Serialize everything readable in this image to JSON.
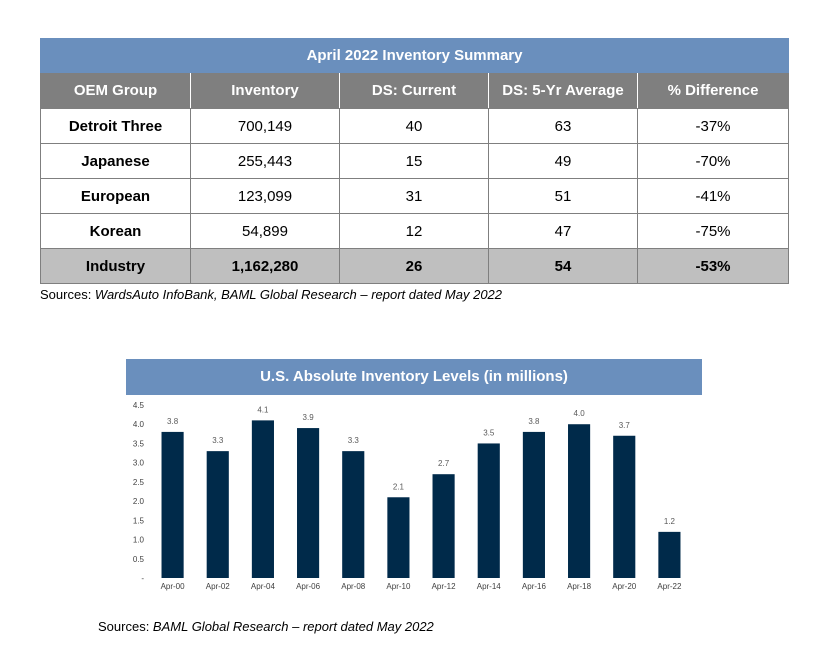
{
  "table": {
    "title": "April 2022 Inventory Summary",
    "headers": [
      "OEM Group",
      "Inventory",
      "DS: Current",
      "DS: 5-Yr Average",
      "% Difference"
    ],
    "rows": [
      [
        "Detroit Three",
        "700,149",
        "40",
        "63",
        "-37%"
      ],
      [
        "Japanese",
        "255,443",
        "15",
        "49",
        "-70%"
      ],
      [
        "European",
        "123,099",
        "31",
        "51",
        "-41%"
      ],
      [
        "Korean",
        "54,899",
        "12",
        "47",
        "-75%"
      ]
    ],
    "total": [
      "Industry",
      "1,162,280",
      "26",
      "54",
      "-53%"
    ]
  },
  "table_source": {
    "prefix": "Sources: ",
    "text": "WardsAuto InfoBank, BAML Global Research – report dated May 2022"
  },
  "chart_data": {
    "type": "bar",
    "title": "U.S. Absolute Inventory Levels (in millions)",
    "categories": [
      "Apr-00",
      "Apr-02",
      "Apr-04",
      "Apr-06",
      "Apr-08",
      "Apr-10",
      "Apr-12",
      "Apr-14",
      "Apr-16",
      "Apr-18",
      "Apr-20",
      "Apr-22"
    ],
    "values": [
      3.8,
      3.3,
      4.1,
      3.9,
      3.3,
      2.1,
      2.7,
      3.5,
      3.8,
      4.0,
      3.7,
      1.2
    ],
    "value_labels": [
      "3.8",
      "3.3",
      "4.1",
      "3.9",
      "3.3",
      "2.1",
      "2.7",
      "3.5",
      "3.8",
      "4.0",
      "3.7",
      "1.2"
    ],
    "yticks": [
      "-",
      "0.5",
      "1.0",
      "1.5",
      "2.0",
      "2.5",
      "3.0",
      "3.5",
      "4.0",
      "4.5"
    ],
    "ylim": [
      0,
      4.5
    ],
    "grid": false,
    "bar_color": "#002a4a"
  },
  "chart_source": {
    "prefix": "Sources: ",
    "text": "BAML Global Research – report dated May 2022"
  }
}
